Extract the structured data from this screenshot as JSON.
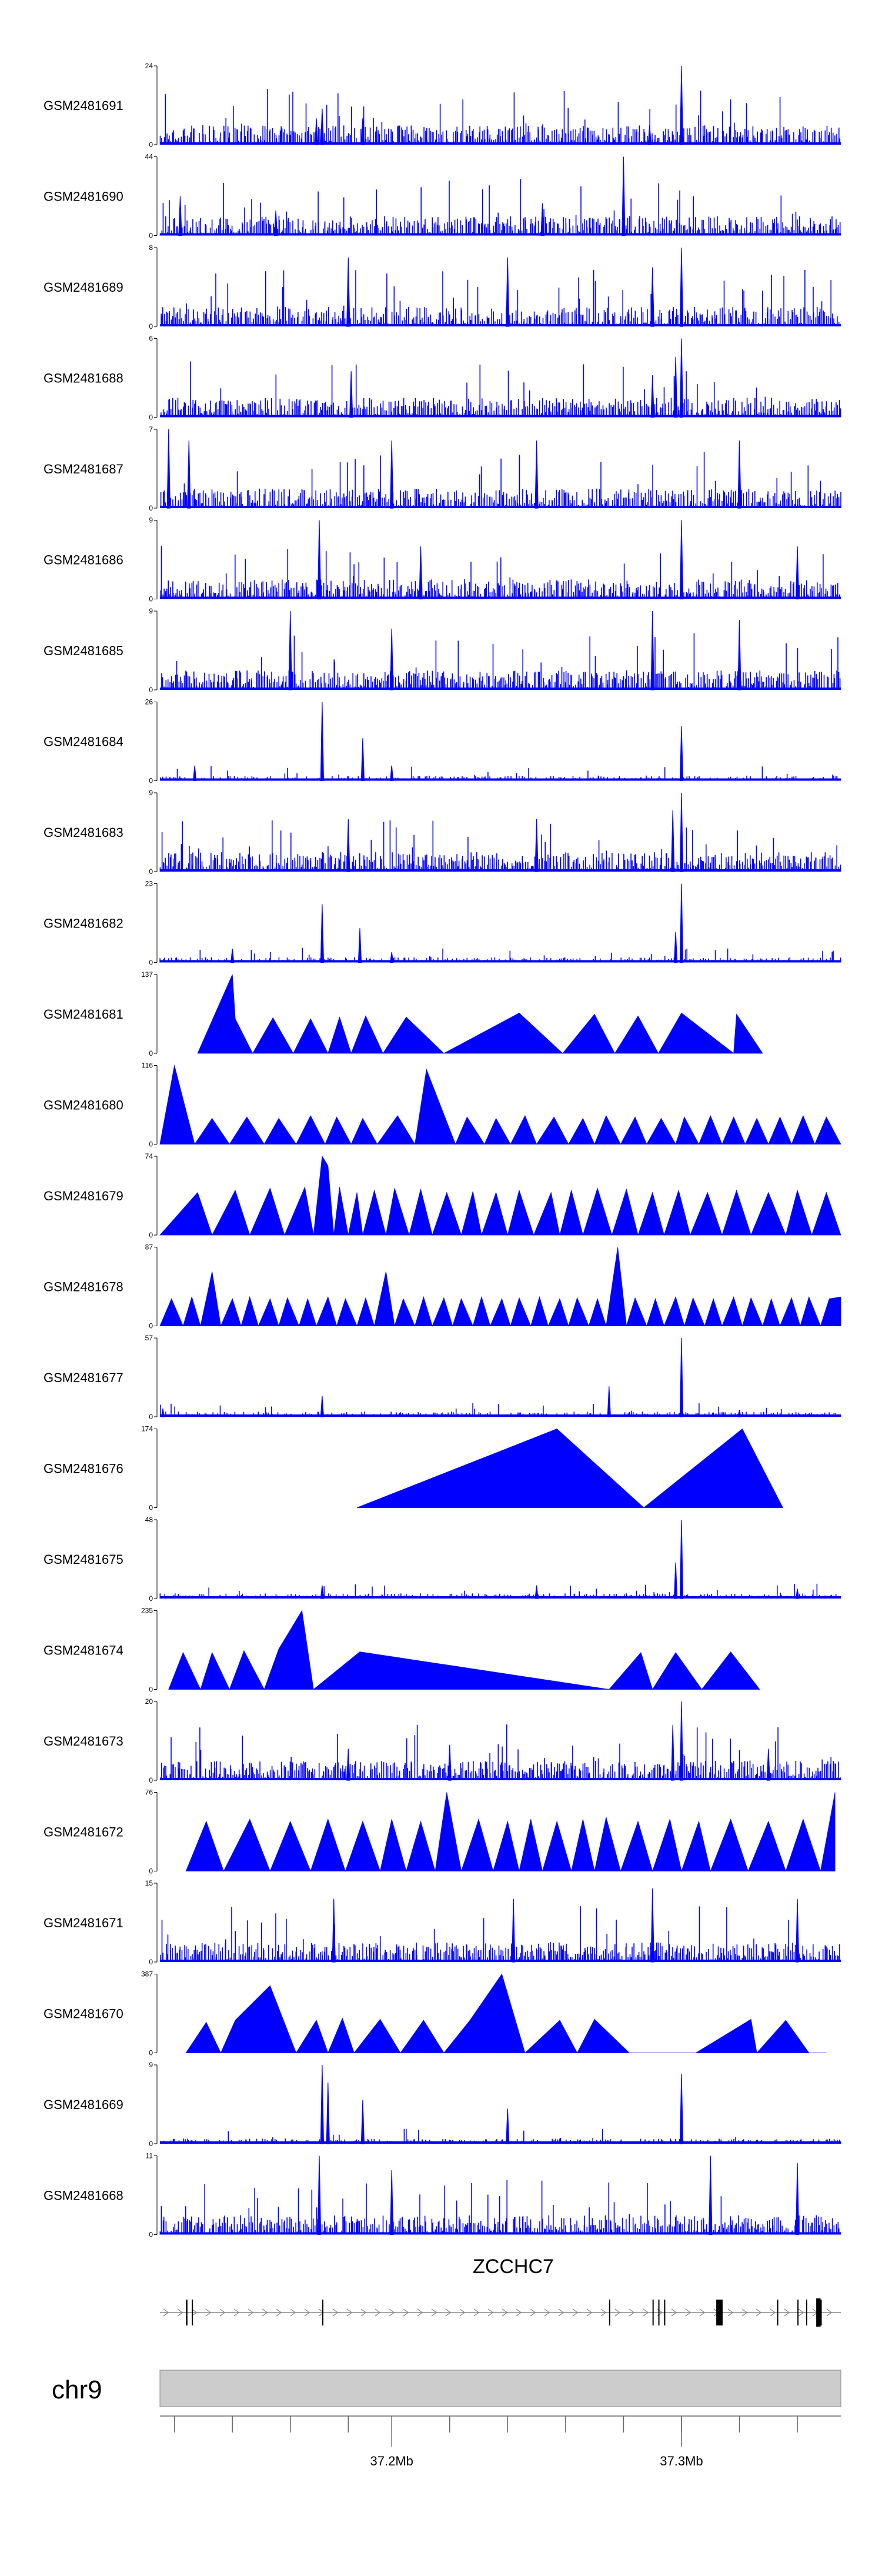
{
  "colors": {
    "signal": "#0000ff",
    "ideogram": "#cccccc",
    "gene": "#000000",
    "axis": "#000000"
  },
  "chart_data": {
    "type": "area",
    "title": "",
    "chromosome": "chr9",
    "gene": "ZCCHC7",
    "xlim": [
      37.12,
      37.355
    ],
    "x_ticks": [
      {
        "pos": 37.2,
        "label": "37.2Mb"
      },
      {
        "pos": 37.3,
        "label": "37.3Mb"
      }
    ],
    "minor_ticks": [
      37.125,
      37.145,
      37.165,
      37.185,
      37.2,
      37.22,
      37.24,
      37.26,
      37.28,
      37.3,
      37.32,
      37.34
    ],
    "tracks": [
      {
        "name": "GSM2481691",
        "ymax": 24,
        "kind": "dense",
        "peaks": [
          [
            37.176,
            11
          ],
          [
            37.174,
            8
          ],
          [
            37.19,
            8
          ],
          [
            37.3,
            24
          ],
          [
            37.289,
            6
          ]
        ]
      },
      {
        "name": "GSM2481690",
        "ymax": 44,
        "kind": "dense",
        "peaks": [
          [
            37.127,
            22
          ],
          [
            37.252,
            18
          ],
          [
            37.28,
            44
          ],
          [
            37.16,
            14
          ]
        ]
      },
      {
        "name": "GSM2481689",
        "ymax": 8,
        "kind": "dense",
        "peaks": [
          [
            37.3,
            8
          ],
          [
            37.185,
            7
          ],
          [
            37.24,
            7
          ],
          [
            37.29,
            6
          ]
        ]
      },
      {
        "name": "GSM2481688",
        "ymax": 6,
        "kind": "dense",
        "peaks": [
          [
            37.3,
            6
          ],
          [
            37.298,
            4.6
          ],
          [
            37.186,
            3.5
          ],
          [
            37.29,
            3.2
          ]
        ]
      },
      {
        "name": "GSM2481687",
        "ymax": 7,
        "kind": "dense",
        "peaks": [
          [
            37.123,
            7
          ],
          [
            37.13,
            6
          ],
          [
            37.2,
            6
          ],
          [
            37.25,
            6
          ],
          [
            37.32,
            6
          ]
        ]
      },
      {
        "name": "GSM2481686",
        "ymax": 9,
        "kind": "dense",
        "peaks": [
          [
            37.175,
            9
          ],
          [
            37.3,
            9
          ],
          [
            37.21,
            6
          ],
          [
            37.34,
            6
          ]
        ]
      },
      {
        "name": "GSM2481685",
        "ymax": 9,
        "kind": "dense",
        "peaks": [
          [
            37.165,
            9
          ],
          [
            37.29,
            9
          ],
          [
            37.32,
            8
          ],
          [
            37.2,
            7
          ]
        ]
      },
      {
        "name": "GSM2481684",
        "ymax": 26,
        "kind": "sparse",
        "peaks": [
          [
            37.176,
            26
          ],
          [
            37.19,
            14
          ],
          [
            37.3,
            18
          ],
          [
            37.132,
            5
          ],
          [
            37.2,
            5
          ]
        ]
      },
      {
        "name": "GSM2481683",
        "ymax": 9,
        "kind": "dense",
        "peaks": [
          [
            37.3,
            9
          ],
          [
            37.297,
            7
          ],
          [
            37.25,
            6
          ],
          [
            37.185,
            6
          ]
        ]
      },
      {
        "name": "GSM2481682",
        "ymax": 23,
        "kind": "sparse",
        "peaks": [
          [
            37.176,
            17
          ],
          [
            37.189,
            10
          ],
          [
            37.3,
            23
          ],
          [
            37.298,
            9
          ],
          [
            37.145,
            4
          ],
          [
            37.2,
            3
          ]
        ]
      },
      {
        "name": "GSM2481681",
        "ymax": 137,
        "kind": "triangles",
        "x": [
          37.133,
          37.145,
          37.146,
          37.152,
          37.159,
          37.166,
          37.172,
          37.178,
          37.182,
          37.186,
          37.191,
          37.197,
          37.205,
          37.218,
          37.244,
          37.259,
          37.27,
          37.277,
          37.285,
          37.292,
          37.3,
          37.318,
          37.319,
          37.328
        ],
        "y": [
          0,
          137,
          60,
          0,
          62,
          0,
          60,
          0,
          63,
          0,
          65,
          0,
          63,
          0,
          70,
          0,
          68,
          0,
          65,
          0,
          70,
          0,
          68,
          0
        ]
      },
      {
        "name": "GSM2481680",
        "ymax": 116,
        "kind": "triangles",
        "x": [
          37.12,
          37.125,
          37.132,
          37.138,
          37.144,
          37.15,
          37.156,
          37.161,
          37.167,
          37.172,
          37.177,
          37.181,
          37.186,
          37.19,
          37.195,
          37.202,
          37.208,
          37.212,
          37.222,
          37.226,
          37.232,
          37.236,
          37.241,
          37.246,
          37.25,
          37.256,
          37.261,
          37.266,
          37.27,
          37.274,
          37.279,
          37.284,
          37.288,
          37.293,
          37.298,
          37.301,
          37.306,
          37.31,
          37.314,
          37.318,
          37.322,
          37.326,
          37.33,
          37.334,
          37.338,
          37.342,
          37.346,
          37.35,
          37.355
        ],
        "y": [
          0,
          116,
          0,
          38,
          0,
          40,
          0,
          38,
          0,
          42,
          0,
          40,
          0,
          38,
          0,
          42,
          0,
          110,
          0,
          40,
          0,
          38,
          0,
          42,
          0,
          40,
          0,
          38,
          0,
          42,
          0,
          40,
          0,
          38,
          0,
          40,
          0,
          42,
          0,
          40,
          0,
          38,
          0,
          40,
          0,
          42,
          0,
          40,
          0
        ]
      },
      {
        "name": "GSM2481679",
        "ymax": 74,
        "kind": "triangles",
        "x": [
          37.12,
          37.133,
          37.138,
          37.146,
          37.151,
          37.158,
          37.163,
          37.17,
          37.173,
          37.176,
          37.178,
          37.18,
          37.182,
          37.185,
          37.188,
          37.19,
          37.194,
          37.198,
          37.201,
          37.206,
          37.21,
          37.214,
          37.219,
          37.224,
          37.228,
          37.231,
          37.236,
          37.24,
          37.244,
          37.249,
          37.255,
          37.258,
          37.262,
          37.266,
          37.271,
          37.276,
          37.281,
          37.285,
          37.29,
          37.294,
          37.299,
          37.303,
          37.309,
          37.314,
          37.319,
          37.324,
          37.33,
          37.336,
          37.34,
          37.345,
          37.35,
          37.355
        ],
        "y": [
          0,
          40,
          0,
          42,
          0,
          44,
          0,
          45,
          0,
          74,
          65,
          0,
          45,
          0,
          40,
          0,
          42,
          0,
          44,
          0,
          43,
          0,
          40,
          0,
          41,
          0,
          40,
          0,
          42,
          0,
          40,
          0,
          42,
          0,
          44,
          0,
          43,
          0,
          40,
          0,
          42,
          0,
          40,
          0,
          42,
          0,
          40,
          0,
          42,
          0,
          40,
          0
        ]
      },
      {
        "name": "GSM2481678",
        "ymax": 87,
        "kind": "triangles",
        "x": [
          37.12,
          37.124,
          37.128,
          37.131,
          37.134,
          37.138,
          37.141,
          37.145,
          37.148,
          37.151,
          37.154,
          37.158,
          37.161,
          37.164,
          37.168,
          37.171,
          37.174,
          37.178,
          37.181,
          37.184,
          37.188,
          37.191,
          37.194,
          37.198,
          37.201,
          37.204,
          37.208,
          37.211,
          37.214,
          37.218,
          37.221,
          37.224,
          37.228,
          37.231,
          37.234,
          37.238,
          37.241,
          37.244,
          37.248,
          37.251,
          37.254,
          37.258,
          37.261,
          37.264,
          37.268,
          37.271,
          37.274,
          37.278,
          37.281,
          37.284,
          37.288,
          37.291,
          37.294,
          37.298,
          37.301,
          37.304,
          37.308,
          37.311,
          37.314,
          37.318,
          37.321,
          37.324,
          37.328,
          37.331,
          37.334,
          37.338,
          37.341,
          37.344,
          37.348,
          37.351,
          37.355
        ],
        "y": [
          0,
          30,
          0,
          32,
          0,
          60,
          0,
          30,
          0,
          32,
          0,
          30,
          0,
          31,
          0,
          30,
          0,
          32,
          0,
          30,
          0,
          31,
          0,
          60,
          0,
          30,
          0,
          32,
          0,
          31,
          0,
          30,
          0,
          32,
          0,
          30,
          0,
          31,
          0,
          32,
          0,
          30,
          0,
          31,
          0,
          30,
          0,
          87,
          0,
          31,
          0,
          30,
          0,
          32,
          0,
          31,
          0,
          30,
          0,
          32,
          0,
          31,
          0,
          30,
          0,
          31,
          0,
          32,
          0,
          30,
          32
        ]
      },
      {
        "name": "GSM2481677",
        "ymax": 57,
        "kind": "sparse",
        "peaks": [
          [
            37.3,
            57
          ],
          [
            37.275,
            22
          ],
          [
            37.176,
            15
          ],
          [
            37.121,
            6
          ],
          [
            37.32,
            5
          ]
        ]
      },
      {
        "name": "GSM2481676",
        "ymax": 174,
        "kind": "triangles",
        "x": [
          37.188,
          37.257,
          37.287,
          37.321,
          37.335
        ],
        "y": [
          0,
          174,
          0,
          174,
          0
        ]
      },
      {
        "name": "GSM2481675",
        "ymax": 48,
        "kind": "sparse",
        "peaks": [
          [
            37.3,
            48
          ],
          [
            37.298,
            22
          ],
          [
            37.176,
            8
          ],
          [
            37.25,
            8
          ],
          [
            37.34,
            6
          ]
        ]
      },
      {
        "name": "GSM2481674",
        "ymax": 235,
        "kind": "triangles",
        "x": [
          37.123,
          37.128,
          37.134,
          37.138,
          37.144,
          37.149,
          37.156,
          37.161,
          37.169,
          37.173,
          37.189,
          37.275,
          37.286,
          37.29,
          37.298,
          37.307,
          37.317,
          37.327
        ],
        "y": [
          0,
          110,
          0,
          110,
          0,
          115,
          0,
          120,
          235,
          0,
          112,
          0,
          110,
          0,
          110,
          0,
          112,
          0
        ]
      },
      {
        "name": "GSM2481673",
        "ymax": 20,
        "kind": "dense",
        "peaks": [
          [
            37.3,
            20
          ],
          [
            37.297,
            14
          ],
          [
            37.22,
            9
          ],
          [
            37.185,
            8
          ],
          [
            37.33,
            8
          ]
        ]
      },
      {
        "name": "GSM2481672",
        "ymax": 76,
        "kind": "triangles",
        "x": [
          37.129,
          37.136,
          37.142,
          37.151,
          37.158,
          37.165,
          37.172,
          37.178,
          37.184,
          37.19,
          37.196,
          37.2,
          37.205,
          37.21,
          37.215,
          37.219,
          37.224,
          37.23,
          37.235,
          37.24,
          37.244,
          37.248,
          37.252,
          37.257,
          37.262,
          37.266,
          37.27,
          37.274,
          37.279,
          37.285,
          37.29,
          37.296,
          37.3,
          37.306,
          37.31,
          37.317,
          37.323,
          37.33,
          37.336,
          37.342,
          37.348,
          37.353
        ],
        "y": [
          0,
          48,
          0,
          50,
          0,
          48,
          0,
          50,
          0,
          48,
          0,
          50,
          0,
          48,
          0,
          76,
          0,
          50,
          0,
          48,
          0,
          50,
          0,
          48,
          0,
          50,
          0,
          52,
          0,
          48,
          0,
          50,
          0,
          48,
          0,
          50,
          0,
          48,
          0,
          50,
          0,
          76
        ]
      },
      {
        "name": "GSM2481671",
        "ymax": 15,
        "kind": "dense",
        "peaks": [
          [
            37.18,
            12
          ],
          [
            37.242,
            12
          ],
          [
            37.29,
            14
          ],
          [
            37.34,
            12
          ]
        ]
      },
      {
        "name": "GSM2481670",
        "ymax": 387,
        "kind": "triangles",
        "x": [
          37.129,
          37.136,
          37.141,
          37.146,
          37.158,
          37.167,
          37.174,
          37.178,
          37.183,
          37.187,
          37.196,
          37.203,
          37.211,
          37.218,
          37.227,
          37.238,
          37.246,
          37.258,
          37.264,
          37.27,
          37.282,
          37.305,
          37.324,
          37.326,
          37.336,
          37.344,
          37.35
        ],
        "y": [
          0,
          150,
          0,
          160,
          330,
          0,
          160,
          0,
          170,
          0,
          165,
          0,
          160,
          0,
          160,
          387,
          0,
          160,
          0,
          165,
          0,
          0,
          165,
          0,
          160,
          0,
          0
        ]
      },
      {
        "name": "GSM2481669",
        "ymax": 9,
        "kind": "sparse",
        "peaks": [
          [
            37.176,
            9
          ],
          [
            37.178,
            7
          ],
          [
            37.3,
            8
          ],
          [
            37.19,
            5
          ],
          [
            37.24,
            4
          ]
        ]
      },
      {
        "name": "GSM2481668",
        "ymax": 11,
        "kind": "dense",
        "peaks": [
          [
            37.175,
            11
          ],
          [
            37.2,
            9
          ],
          [
            37.31,
            11
          ],
          [
            37.34,
            10
          ]
        ]
      }
    ],
    "gene_model": {
      "start": 37.12,
      "end": 37.355,
      "strand": "+",
      "exons": [
        [
          37.129,
          37.1295
        ],
        [
          37.131,
          37.1314
        ],
        [
          37.176,
          37.1762
        ],
        [
          37.275,
          37.2754
        ],
        [
          37.29,
          37.2903
        ],
        [
          37.292,
          37.2924
        ],
        [
          37.294,
          37.2943
        ],
        [
          37.312,
          37.3134
        ],
        [
          37.3131,
          37.3142
        ],
        [
          37.333,
          37.3332
        ],
        [
          37.34,
          37.3403
        ],
        [
          37.343,
          37.3433
        ],
        [
          37.348,
          37.3478
        ]
      ],
      "utr3": [
        37.3465,
        37.348
      ]
    }
  }
}
